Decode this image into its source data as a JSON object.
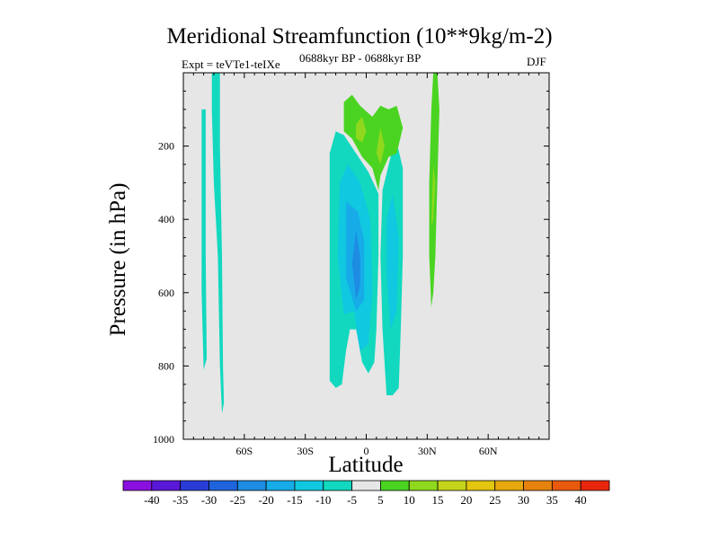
{
  "header": {
    "title": "Meridional Streamfunction (10**9kg/m-2)",
    "experiment": "Expt = teVTe1-teIXe",
    "period": "0688kyr BP - 0688kyr BP",
    "season": "DJF"
  },
  "colors": {
    "background": "#e6e6e6",
    "frame": "#000000"
  },
  "chart_data": {
    "type": "contour",
    "title": "Meridional Streamfunction (10**9kg/m-2)",
    "subtitle": "0688kyr BP - 0688kyr BP",
    "annotations": [
      "Expt = teVTe1-teIXe",
      "DJF"
    ],
    "xlabel": "Latitude",
    "ylabel": "Pressure (in hPa)",
    "xlim": [
      -90,
      90
    ],
    "ylim": [
      1000,
      0
    ],
    "xticks": [
      {
        "value": -60,
        "label": "60S"
      },
      {
        "value": -30,
        "label": "30S"
      },
      {
        "value": 0,
        "label": "0"
      },
      {
        "value": 30,
        "label": "30N"
      },
      {
        "value": 60,
        "label": "60N"
      }
    ],
    "yticks": [
      {
        "value": 200,
        "label": "200"
      },
      {
        "value": 400,
        "label": "400"
      },
      {
        "value": 600,
        "label": "600"
      },
      {
        "value": 800,
        "label": "800"
      },
      {
        "value": 1000,
        "label": "1000"
      }
    ],
    "colorbar": {
      "labels": [
        "-40",
        "-35",
        "-30",
        "-25",
        "-20",
        "-15",
        "-10",
        "-5",
        "5",
        "10",
        "15",
        "20",
        "25",
        "30",
        "35",
        "40"
      ],
      "colors": [
        "#8a10e0",
        "#5a18d8",
        "#2a3cd6",
        "#1f64dd",
        "#1d8ce2",
        "#17ace8",
        "#10c8e0",
        "#12d8bf",
        "#e6e6e6",
        "#4ad421",
        "#8fd81d",
        "#c4d41a",
        "#e2c60f",
        "#e6a80e",
        "#e6820e",
        "#e85a0e",
        "#e8260e"
      ]
    },
    "regions": [
      {
        "name": "southern-polar-band",
        "level": -5,
        "color": "#12d8bf",
        "points": [
          [
            -76,
            0
          ],
          [
            -72,
            0
          ],
          [
            -72,
            200
          ],
          [
            -71,
            500
          ],
          [
            -70.5,
            800
          ],
          [
            -70,
            900
          ],
          [
            -71,
            930
          ],
          [
            -72,
            800
          ],
          [
            -73,
            500
          ],
          [
            -75,
            300
          ],
          [
            -76,
            100
          ]
        ]
      },
      {
        "name": "southern-polar-band-west",
        "level": -5,
        "color": "#12d8bf",
        "points": [
          [
            -81,
            100
          ],
          [
            -79,
            100
          ],
          [
            -79,
            500
          ],
          [
            -78.5,
            780
          ],
          [
            -80,
            810
          ],
          [
            -81,
            600
          ]
        ]
      },
      {
        "name": "tropical-south-cell",
        "level": -5,
        "color": "#12d8bf",
        "points": [
          [
            -18,
            220
          ],
          [
            -15,
            160
          ],
          [
            -11,
            170
          ],
          [
            -5,
            220
          ],
          [
            1,
            270
          ],
          [
            6,
            330
          ],
          [
            6,
            500
          ],
          [
            5,
            700
          ],
          [
            4,
            790
          ],
          [
            1,
            820
          ],
          [
            -2,
            790
          ],
          [
            -5,
            700
          ],
          [
            -8,
            700
          ],
          [
            -10,
            760
          ],
          [
            -12,
            850
          ],
          [
            -15,
            860
          ],
          [
            -18,
            840
          ],
          [
            -18,
            500
          ]
        ]
      },
      {
        "name": "tropical-south-core",
        "level": -10,
        "color": "#10c8e0",
        "points": [
          [
            -13,
            300
          ],
          [
            -9,
            250
          ],
          [
            -3,
            300
          ],
          [
            2,
            400
          ],
          [
            3,
            600
          ],
          [
            1,
            740
          ],
          [
            -3,
            760
          ],
          [
            -6,
            650
          ],
          [
            -11,
            660
          ],
          [
            -14,
            500
          ]
        ]
      },
      {
        "name": "tropical-south-inner",
        "level": -15,
        "color": "#17ace8",
        "points": [
          [
            -10,
            350
          ],
          [
            -4,
            380
          ],
          [
            -1,
            460
          ],
          [
            -1,
            620
          ],
          [
            -5,
            650
          ],
          [
            -10,
            560
          ]
        ]
      },
      {
        "name": "tropical-south-center",
        "level": -20,
        "color": "#1d8ce2",
        "points": [
          [
            -5,
            430
          ],
          [
            -3,
            500
          ],
          [
            -3,
            580
          ],
          [
            -5,
            620
          ],
          [
            -7,
            520
          ]
        ]
      },
      {
        "name": "tropical-north-cell",
        "level": -5,
        "color": "#12d8bf",
        "points": [
          [
            8,
            320
          ],
          [
            12,
            230
          ],
          [
            15,
            190
          ],
          [
            18,
            260
          ],
          [
            18,
            500
          ],
          [
            17,
            700
          ],
          [
            16,
            860
          ],
          [
            13,
            880
          ],
          [
            10,
            880
          ],
          [
            8,
            700
          ],
          [
            7,
            500
          ]
        ]
      },
      {
        "name": "tropical-north-core",
        "level": -10,
        "color": "#10c8e0",
        "points": [
          [
            10,
            400
          ],
          [
            13,
            330
          ],
          [
            16,
            450
          ],
          [
            15,
            650
          ],
          [
            12,
            700
          ],
          [
            10,
            550
          ]
        ]
      },
      {
        "name": "upper-tropical-cell",
        "level": 5,
        "color": "#4ad421",
        "points": [
          [
            -11,
            80
          ],
          [
            -7,
            60
          ],
          [
            -3,
            90
          ],
          [
            3,
            120
          ],
          [
            7,
            90
          ],
          [
            11,
            100
          ],
          [
            15,
            90
          ],
          [
            18,
            150
          ],
          [
            15,
            220
          ],
          [
            11,
            230
          ],
          [
            7,
            280
          ],
          [
            6,
            320
          ],
          [
            3,
            260
          ],
          [
            -2,
            230
          ],
          [
            -7,
            180
          ],
          [
            -11,
            160
          ]
        ]
      },
      {
        "name": "upper-tropical-core-west",
        "level": 10,
        "color": "#8fd81d",
        "points": [
          [
            -5,
            140
          ],
          [
            -2,
            120
          ],
          [
            0,
            160
          ],
          [
            -2,
            190
          ],
          [
            -5,
            180
          ]
        ]
      },
      {
        "name": "upper-tropical-core-east",
        "level": 10,
        "color": "#8fd81d",
        "points": [
          [
            6,
            180
          ],
          [
            7,
            150
          ],
          [
            9,
            200
          ],
          [
            7,
            250
          ],
          [
            5,
            220
          ]
        ]
      },
      {
        "name": "northern-subtropical-band",
        "level": 5,
        "color": "#4ad421",
        "points": [
          [
            33,
            0
          ],
          [
            35,
            0
          ],
          [
            36,
            100
          ],
          [
            35,
            300
          ],
          [
            34,
            500
          ],
          [
            33,
            600
          ],
          [
            32,
            640
          ],
          [
            31,
            500
          ],
          [
            31,
            300
          ],
          [
            32,
            100
          ]
        ]
      },
      {
        "name": "northern-subtropical-core",
        "level": 10,
        "color": "#8fd81d",
        "points": [
          [
            33,
            250
          ],
          [
            34,
            300
          ],
          [
            33,
            400
          ],
          [
            32,
            420
          ]
        ]
      }
    ]
  }
}
